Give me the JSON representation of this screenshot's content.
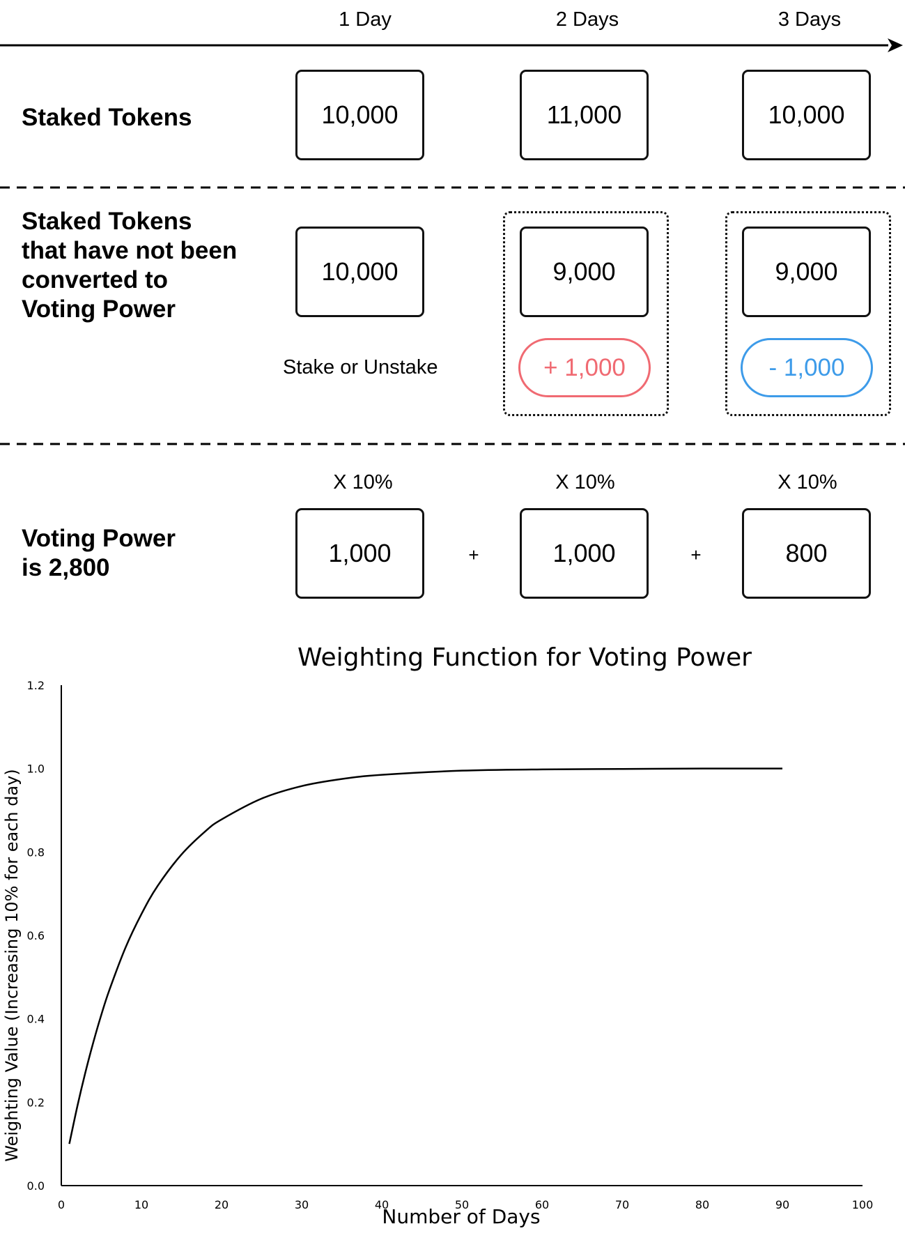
{
  "timeline": {
    "days": [
      "1 Day",
      "2 Days",
      "3 Days"
    ]
  },
  "staked": {
    "title": "Staked Tokens",
    "values": [
      "10,000",
      "11,000",
      "10,000"
    ]
  },
  "unconverted": {
    "title_lines": [
      "Staked Tokens",
      "that have not been",
      "converted to",
      "Voting Power"
    ],
    "values": [
      "10,000",
      "9,000",
      "9,000"
    ],
    "action_label": "Stake or Unstake",
    "changes": [
      {
        "text": "+ 1,000",
        "color": "#f06a72"
      },
      {
        "text": "- 1,000",
        "color": "#3d9be9"
      }
    ]
  },
  "voting": {
    "title_lines": [
      "Voting Power",
      "is 2,800"
    ],
    "multipliers": [
      "X 10%",
      "X 10%",
      "X 10%"
    ],
    "values": [
      "1,000",
      "1,000",
      "800"
    ],
    "operator": "+"
  },
  "chart_data": {
    "type": "line",
    "title": "Weighting Function for Voting Power",
    "xlabel": "Number of Days",
    "ylabel": "Weighting Value (Increasing 10% for each day)",
    "xlim": [
      0,
      100
    ],
    "ylim": [
      0,
      1.2
    ],
    "x_ticks": [
      0,
      10,
      20,
      30,
      40,
      50,
      60,
      70,
      80,
      90,
      100
    ],
    "x_tick_labels": [
      "0",
      "10",
      "20",
      "30",
      "40",
      "50",
      "60",
      "70",
      "80",
      "90",
      "100"
    ],
    "y_ticks": [
      0,
      0.2,
      0.4,
      0.6,
      0.8,
      1.0,
      1.2
    ],
    "y_tick_labels": [
      "0.0",
      "0.2",
      "0.4",
      "0.6",
      "0.8",
      "1.0",
      "1.2"
    ],
    "grid": false,
    "series": [
      {
        "x": [
          1,
          2,
          3,
          4,
          5,
          6,
          8,
          10,
          12,
          15,
          18,
          20,
          25,
          30,
          35,
          40,
          50,
          60,
          70,
          80,
          90
        ],
        "y": [
          0.1,
          0.19,
          0.271,
          0.344,
          0.41,
          0.469,
          0.57,
          0.651,
          0.718,
          0.794,
          0.85,
          0.878,
          0.928,
          0.958,
          0.975,
          0.985,
          0.995,
          0.998,
          0.999,
          1.0,
          1.0
        ]
      }
    ]
  }
}
